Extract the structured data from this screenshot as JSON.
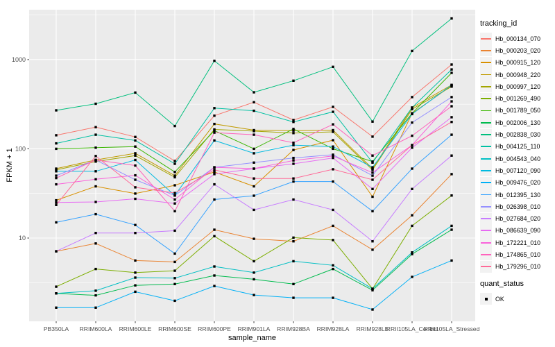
{
  "figure": {
    "panel_bg": "#EBEBEB",
    "grid_color": "#FFFFFF",
    "tick_color": "#333333",
    "axis_text_color": "#4D4D4D",
    "point_color": "#000000"
  },
  "axes": {
    "x_title": "sample_name",
    "y_title": "FPKM + 1",
    "y_tick_labels": [
      "10",
      "100",
      "1000"
    ]
  },
  "legend": {
    "tracking_title": "tracking_id",
    "quant_title": "quant_status",
    "quant_items": [
      {
        "label": "OK"
      }
    ]
  },
  "chart_data": {
    "type": "line",
    "title": "",
    "xlabel": "sample_name",
    "ylabel": "FPKM + 1",
    "y_scale": "log10",
    "ylim": [
      1.17,
      3600
    ],
    "y_major_ticks": [
      10,
      100,
      1000
    ],
    "y_minor_ticks": [
      3.162,
      31.62,
      316.2,
      3162
    ],
    "grid": true,
    "legend_position": "right",
    "point_shape": "small black square (quant_status OK)",
    "categories": [
      "PB350LA",
      "RRIM600LA",
      "RRIM600LE",
      "RRIM600SE",
      "RRIM600PE",
      "RRIM901LA",
      "RRIM928BA",
      "RRIM928LA",
      "RRIM928LE",
      "RRII105LA_Control",
      "RRII105LA_Stressed"
    ],
    "series": [
      {
        "name": "Hb_000134_070",
        "color": "#F8766D",
        "quant_status": "OK",
        "values": [
          142,
          175,
          136,
          73,
          235,
          333,
          210,
          295,
          137,
          380,
          880
        ]
      },
      {
        "name": "Hb_000203_020",
        "color": "#EA8331",
        "quant_status": "OK",
        "values": [
          7.1,
          8.7,
          5.6,
          5.4,
          12.4,
          9.8,
          9.2,
          13.7,
          7.4,
          18,
          52
        ]
      },
      {
        "name": "Hb_000915_120",
        "color": "#D89000",
        "quant_status": "OK",
        "values": [
          26.5,
          38,
          31.5,
          39,
          55,
          38,
          97,
          125,
          29,
          250,
          510
        ]
      },
      {
        "name": "Hb_000948_220",
        "color": "#C09B00",
        "quant_status": "OK",
        "values": [
          60,
          75,
          89,
          50,
          190,
          162,
          160,
          162,
          60,
          290,
          520
        ]
      },
      {
        "name": "Hb_000997_120",
        "color": "#A3A500",
        "quant_status": "OK",
        "values": [
          58,
          72,
          84,
          48,
          165,
          158,
          150,
          155,
          58,
          278,
          498
        ]
      },
      {
        "name": "Hb_001269_490",
        "color": "#7CAE00",
        "quant_status": "OK",
        "values": [
          2.85,
          4.5,
          4.1,
          4.3,
          10.5,
          5.5,
          10.1,
          9.5,
          2.7,
          13.7,
          30
        ]
      },
      {
        "name": "Hb_001789_050",
        "color": "#39B600",
        "quant_status": "OK",
        "values": [
          100,
          103,
          106,
          55,
          160,
          100,
          167,
          100,
          72,
          250,
          710
        ]
      },
      {
        "name": "Hb_002006_130",
        "color": "#00BB4E",
        "quant_status": "OK",
        "values": [
          2.4,
          2.28,
          2.95,
          3.05,
          3.8,
          3.45,
          3.05,
          4.5,
          2.6,
          6.6,
          12.4
        ]
      },
      {
        "name": "Hb_002838_030",
        "color": "#00BF7D",
        "quant_status": "OK",
        "values": [
          270,
          320,
          427,
          180,
          970,
          430,
          580,
          830,
          202,
          1250,
          2890
        ]
      },
      {
        "name": "Hb_004125_110",
        "color": "#00C1A3",
        "quant_status": "OK",
        "values": [
          115,
          144,
          124,
          68,
          286,
          267,
          200,
          260,
          70,
          290,
          775
        ]
      },
      {
        "name": "Hb_004543_040",
        "color": "#00BFC4",
        "quant_status": "OK",
        "values": [
          2.4,
          2.57,
          3.6,
          3.55,
          4.8,
          4.1,
          5.5,
          4.95,
          2.7,
          6.9,
          13.7
        ]
      },
      {
        "name": "Hb_007120_090",
        "color": "#00BAE0",
        "quant_status": "OK",
        "values": [
          56,
          56,
          75,
          30,
          124,
          89,
          110,
          106,
          62,
          245,
          520
        ]
      },
      {
        "name": "Hb_009476_020",
        "color": "#00B0F6",
        "quant_status": "OK",
        "values": [
          1.66,
          1.66,
          2.5,
          1.98,
          2.9,
          2.3,
          2.14,
          2.14,
          1.58,
          3.67,
          5.6
        ]
      },
      {
        "name": "Hb_012395_130",
        "color": "#35A2FF",
        "quant_status": "OK",
        "values": [
          15,
          18.5,
          14,
          6.7,
          27,
          29.8,
          43,
          43,
          20,
          60,
          144
        ]
      },
      {
        "name": "Hb_026398_010",
        "color": "#9590FF",
        "quant_status": "OK",
        "values": [
          50,
          75,
          45,
          30,
          62,
          70,
          79,
          86,
          50,
          197,
          380
        ]
      },
      {
        "name": "Hb_027684_020",
        "color": "#C77CFF",
        "quant_status": "OK",
        "values": [
          7.1,
          11.4,
          11.4,
          12.1,
          40,
          20.7,
          27,
          20.7,
          9.2,
          35.5,
          84
        ]
      },
      {
        "name": "Hb_086639_090",
        "color": "#E76BF3",
        "quant_status": "OK",
        "values": [
          25,
          25.4,
          27.5,
          24.4,
          52,
          60,
          68,
          79,
          35.5,
          103,
          226
        ]
      },
      {
        "name": "Hb_172221_010",
        "color": "#FA62DB",
        "quant_status": "OK",
        "values": [
          40,
          45.6,
          50.5,
          27,
          62,
          60,
          74,
          83,
          54,
          110,
          340
        ]
      },
      {
        "name": "Hb_174865_010",
        "color": "#FF62BC",
        "quant_status": "OK",
        "values": [
          47,
          75,
          65,
          20,
          152,
          144,
          117,
          188,
          84,
          140,
          300
        ]
      },
      {
        "name": "Hb_179296_010",
        "color": "#FF6A98",
        "quant_status": "OK",
        "values": [
          23.5,
          83,
          37,
          32,
          58,
          46.5,
          46.5,
          59,
          45,
          110,
          200
        ]
      }
    ]
  }
}
